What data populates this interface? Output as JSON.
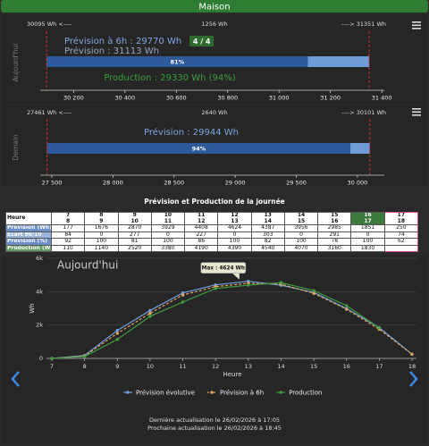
{
  "header": {
    "title": "Maison"
  },
  "gauges": [
    {
      "side_label": "Aujourd'hui",
      "min": {
        "value": 30095,
        "label": "30095 Wh <----"
      },
      "span": {
        "value": 1256,
        "label": "1256 Wh"
      },
      "max": {
        "value": 31351,
        "label": "----> 31351 Wh"
      },
      "lines": [
        "Prévision à 6h : 29770 Wh",
        "Prévision : 31113 Wh"
      ],
      "badge": "4 / 4",
      "bar": {
        "value": 81,
        "label": "81%"
      },
      "production": "Production : 29330 Wh (94%)",
      "xlim": [
        30070,
        31410
      ],
      "xticks": [
        {
          "value": 30200,
          "label": "30 200"
        },
        {
          "value": 30400,
          "label": "30 400"
        },
        {
          "value": 30600,
          "label": "30 600"
        },
        {
          "value": 30800,
          "label": "30 800"
        },
        {
          "value": 31000,
          "label": "31 000"
        },
        {
          "value": 31200,
          "label": "31 200"
        },
        {
          "value": 31400,
          "label": "31 400"
        }
      ]
    },
    {
      "side_label": "Demain",
      "min": {
        "value": 27461,
        "label": "27461 Wh <----"
      },
      "span": {
        "value": 2640,
        "label": "2640 Wh"
      },
      "max": {
        "value": 30101,
        "label": "----> 30101 Wh"
      },
      "lines": [
        "Prévision : 29944 Wh"
      ],
      "bar": {
        "value": 94,
        "label": "94%"
      },
      "xlim": [
        27405,
        30220
      ],
      "xticks": [
        {
          "value": 27500,
          "label": "27 500"
        },
        {
          "value": 28000,
          "label": "28 000"
        },
        {
          "value": 28500,
          "label": "28 500"
        },
        {
          "value": 29000,
          "label": "29 000"
        },
        {
          "value": 29500,
          "label": "29 500"
        },
        {
          "value": 30000,
          "label": "30 000"
        }
      ]
    }
  ],
  "table": {
    "title": "Prévision et Production de la journée",
    "header": "Heure",
    "columns": [
      [
        "7",
        "8"
      ],
      [
        "8",
        "9"
      ],
      [
        "9",
        "10"
      ],
      [
        "10",
        "11"
      ],
      [
        "11",
        "12"
      ],
      [
        "12",
        "13"
      ],
      [
        "13",
        "14"
      ],
      [
        "14",
        "15"
      ],
      [
        "15",
        "16"
      ],
      [
        "16",
        "17"
      ],
      [
        "17",
        "18"
      ]
    ],
    "rows": [
      {
        "label": "Prévision (Wh)",
        "values": [
          177,
          1676,
          2870,
          3929,
          4408,
          4624,
          4387,
          3956,
          2985,
          1851,
          250
        ]
      },
      {
        "label": "Ecart 90/10",
        "values": [
          84,
          0,
          277,
          0,
          227,
          0,
          303,
          0,
          291,
          0,
          74
        ]
      },
      {
        "label": "Prévision (%)",
        "values": [
          92,
          100,
          81,
          100,
          86,
          100,
          82,
          100,
          78,
          100,
          62
        ]
      },
      {
        "label": "Production (Wh)",
        "values": [
          110,
          1140,
          2520,
          3380,
          4190,
          4390,
          4540,
          4070,
          3160,
          1830,
          null
        ]
      }
    ]
  },
  "chart_data": {
    "type": "line",
    "title": "Aujourd'hui",
    "x_label": "Heure",
    "y_label": "Wh",
    "x": [
      7,
      8,
      9,
      10,
      11,
      12,
      13,
      14,
      15,
      16,
      17,
      18
    ],
    "xlim": [
      7,
      18
    ],
    "xticks": [
      7,
      8,
      9,
      10,
      11,
      12,
      13,
      14,
      15,
      16,
      17,
      18
    ],
    "ylim": [
      0,
      6000
    ],
    "yticks": [
      0,
      {
        "value": 2000,
        "label": "2k"
      },
      {
        "value": 4000,
        "label": "4k"
      },
      {
        "value": 6000,
        "label": "6k"
      }
    ],
    "grid": true,
    "series": [
      {
        "name": "Prévision évolutive",
        "color": "#6f9fdc",
        "values": [
          0,
          177,
          1676,
          2870,
          3929,
          4408,
          4624,
          4387,
          3956,
          2985,
          1851,
          250
        ]
      },
      {
        "name": "Prévision à 6h",
        "color": "#e0a35e",
        "values": [
          0,
          150,
          1500,
          2700,
          3800,
          4300,
          4500,
          4450,
          3900,
          2950,
          1750,
          250
        ]
      },
      {
        "name": "Production",
        "color": "#3f9a3f",
        "values": [
          0,
          110,
          1140,
          2520,
          3380,
          4190,
          4390,
          4540,
          4070,
          3160,
          1830,
          null
        ]
      }
    ],
    "annotation": {
      "text": "Max : 4624 Wh",
      "x": 13,
      "y": 4624
    }
  },
  "footer": [
    "Dernière actualisation le 26/02/2026 à 17:05",
    "Prochaine actualisation le 26/02/2026 à 18:45"
  ]
}
